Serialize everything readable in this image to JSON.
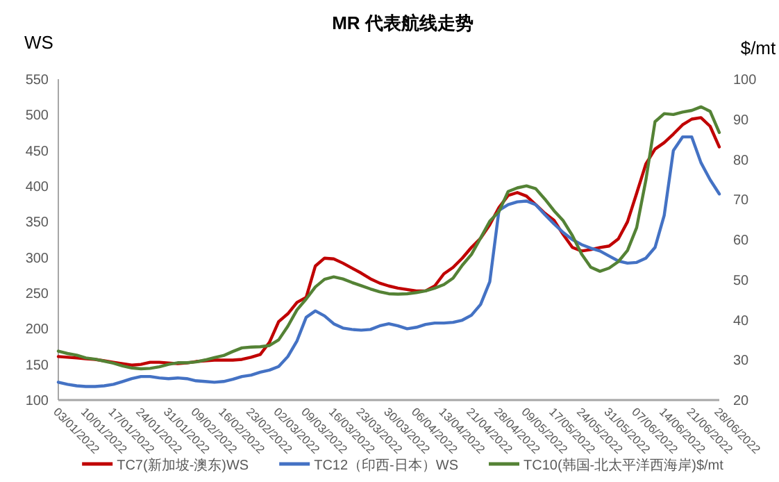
{
  "chart_data": {
    "type": "line",
    "title": "MR 代表航线走势",
    "ylabel": "WS",
    "y2label": "$/mt",
    "categories": [
      "03/01/2022",
      null,
      null,
      "10/01/2022",
      null,
      null,
      "17/01/2022",
      null,
      null,
      "24/01/2022",
      null,
      null,
      "31/01/2022",
      null,
      null,
      "09/02/2022",
      null,
      null,
      "16/02/2022",
      null,
      null,
      "23/02/2022",
      null,
      null,
      "02/03/2022",
      null,
      null,
      "09/03/2022",
      null,
      null,
      "16/03/2022",
      null,
      null,
      "23/03/2022",
      null,
      null,
      "30/03/2022",
      null,
      null,
      "06/04/2022",
      null,
      null,
      "13/04/2022",
      null,
      null,
      "21/04/2022",
      null,
      null,
      "28/04/2022",
      null,
      null,
      "09/05/2022",
      null,
      null,
      "17/05/2022",
      null,
      null,
      "24/05/2022",
      null,
      null,
      "31/05/2022",
      null,
      null,
      "07/06/2022",
      null,
      null,
      "14/06/2022",
      null,
      null,
      "21/06/2022",
      null,
      null,
      "28/06/2022"
    ],
    "series": [
      {
        "name": "TC7(新加坡-澳东)WS",
        "color": "#c00000",
        "values": [
          161,
          160,
          159,
          158,
          157,
          155,
          153,
          151,
          149,
          150,
          153,
          153,
          152,
          151,
          152,
          154,
          155,
          156,
          156,
          156,
          157,
          160,
          164,
          181,
          210,
          221,
          237,
          244,
          288,
          299,
          298,
          292,
          285,
          278,
          270,
          264,
          260,
          257,
          255,
          253,
          253,
          260,
          277,
          286,
          299,
          314,
          327,
          346,
          370,
          387,
          391,
          386,
          374,
          362,
          352,
          332,
          314,
          309,
          311,
          314,
          316,
          326,
          350,
          390,
          431,
          452,
          461,
          473,
          486,
          494,
          496,
          484,
          455
        ]
      },
      {
        "name": "TC12（印西-日本）WS",
        "color": "#4472c4",
        "values": [
          125,
          122,
          120,
          119,
          119,
          120,
          122,
          126,
          130,
          133,
          133,
          131,
          130,
          131,
          130,
          127,
          126,
          125,
          126,
          129,
          133,
          135,
          139,
          142,
          147,
          161,
          183,
          216,
          225,
          218,
          207,
          201,
          199,
          198,
          199,
          204,
          207,
          204,
          200,
          202,
          206,
          208,
          208,
          209,
          212,
          219,
          234,
          266,
          366,
          374,
          378,
          379,
          374,
          360,
          347,
          335,
          325,
          318,
          313,
          309,
          302,
          295,
          292,
          293,
          299,
          314,
          359,
          450,
          469,
          469,
          433,
          409,
          389
        ]
      },
      {
        "name": "TC10(韩国-北太平洋西海岸)$/mt",
        "color": "#548235",
        "axis": "y2",
        "values": [
          32.2,
          31.6,
          31.2,
          30.5,
          30.2,
          29.7,
          29.2,
          28.5,
          28.0,
          27.8,
          27.9,
          28.3,
          28.9,
          29.3,
          29.3,
          29.5,
          30.0,
          30.6,
          31.1,
          32.1,
          33.0,
          33.2,
          33.3,
          33.6,
          35.0,
          38.4,
          42.5,
          45.2,
          48.2,
          50.1,
          50.7,
          50.2,
          49.3,
          48.5,
          47.7,
          47.0,
          46.5,
          46.4,
          46.5,
          46.8,
          47.2,
          47.9,
          48.8,
          50.4,
          53.6,
          56.3,
          60.4,
          64.6,
          67.0,
          72.0,
          72.9,
          73.4,
          72.7,
          70.1,
          67.2,
          64.7,
          61.0,
          56.4,
          53.1,
          52.1,
          52.9,
          54.5,
          57.3,
          63.0,
          74.8,
          89.4,
          91.4,
          91.2,
          91.8,
          92.2,
          93.1,
          92.0,
          86.7
        ]
      }
    ],
    "ylim": [
      100,
      550
    ],
    "yticks": [
      100,
      150,
      200,
      250,
      300,
      350,
      400,
      450,
      500,
      550
    ],
    "y2lim": [
      20,
      100
    ],
    "y2ticks": [
      20,
      30,
      40,
      50,
      60,
      70,
      80,
      90,
      100
    ],
    "legend": "bottom",
    "grid": false
  }
}
